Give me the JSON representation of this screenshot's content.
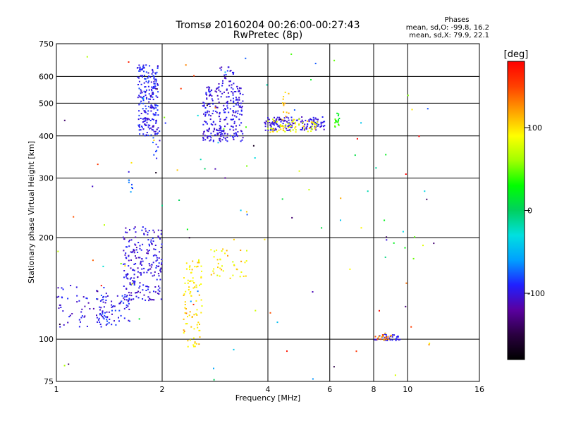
{
  "header": {
    "title_line1": "Tromsø 20160204 00:26:00-00:27:43",
    "title_line2": "RwPretec (8p)"
  },
  "stats": {
    "heading": "Phases",
    "line_o": "mean, sd,O: -99.8, 16.2",
    "line_x": "mean, sd,X:  79.9, 22.1"
  },
  "colorbar": {
    "unit": "[deg]",
    "min": -180,
    "max": 180,
    "ticks": [
      {
        "value": 100,
        "label": "100"
      },
      {
        "value": 0,
        "label": "0"
      },
      {
        "value": -100,
        "label": "-100"
      }
    ],
    "stops": [
      "#000000",
      "#2a0040",
      "#5a00a0",
      "#2020ff",
      "#00a0ff",
      "#00e0e0",
      "#00d060",
      "#00ff00",
      "#a0ff00",
      "#ffff00",
      "#ffa000",
      "#ff4000",
      "#ff0000"
    ]
  },
  "chart_data": {
    "type": "scatter",
    "title": "Tromsø 20160204 00:26:00-00:27:43",
    "subtitle": "RwPretec (8p)",
    "xlabel": "Frequency [MHz]",
    "ylabel": "Stationary phase Virtual Height [km]",
    "x_scale": "log",
    "y_scale": "log",
    "xlim": [
      1,
      16
    ],
    "ylim": [
      75,
      750
    ],
    "x_ticks": [
      {
        "value": 1,
        "label": "1"
      },
      {
        "value": 2,
        "label": "2"
      },
      {
        "value": 4,
        "label": "4"
      },
      {
        "value": 6,
        "label": "6"
      },
      {
        "value": 8,
        "label": "8"
      },
      {
        "value": 10,
        "label": "10"
      },
      {
        "value": 16,
        "label": "16"
      }
    ],
    "y_ticks": [
      {
        "value": 75,
        "label": "75"
      },
      {
        "value": 100,
        "label": "100"
      },
      {
        "value": 200,
        "label": "200"
      },
      {
        "value": 300,
        "label": "300"
      },
      {
        "value": 400,
        "label": "400"
      },
      {
        "value": 500,
        "label": "500"
      },
      {
        "value": 600,
        "label": "600"
      },
      {
        "value": 750,
        "label": "750"
      }
    ],
    "grid": true,
    "clusters": [
      {
        "fmin": 1.7,
        "fmax": 1.95,
        "hmin": 400,
        "hmax": 650,
        "phase": -95,
        "spread": 15,
        "n": 220
      },
      {
        "fmin": 1.88,
        "fmax": 1.97,
        "hmin": 340,
        "hmax": 420,
        "phase": -90,
        "spread": 20,
        "n": 12
      },
      {
        "fmin": 2.6,
        "fmax": 3.4,
        "hmin": 385,
        "hmax": 560,
        "phase": -100,
        "spread": 12,
        "n": 260
      },
      {
        "fmin": 2.9,
        "fmax": 3.3,
        "hmin": 560,
        "hmax": 640,
        "phase": -100,
        "spread": 15,
        "n": 25
      },
      {
        "fmin": 3.9,
        "fmax": 5.8,
        "hmin": 415,
        "hmax": 455,
        "phase": -100,
        "spread": 12,
        "n": 150
      },
      {
        "fmin": 3.9,
        "fmax": 5.6,
        "hmin": 410,
        "hmax": 450,
        "phase": 90,
        "spread": 25,
        "n": 70
      },
      {
        "fmin": 4.4,
        "fmax": 4.6,
        "hmin": 450,
        "hmax": 540,
        "phase": 110,
        "spread": 15,
        "n": 12
      },
      {
        "fmin": 6.2,
        "fmax": 6.4,
        "hmin": 425,
        "hmax": 470,
        "phase": 30,
        "spread": 20,
        "n": 18
      },
      {
        "fmin": 1.0,
        "fmax": 1.4,
        "hmin": 108,
        "hmax": 145,
        "phase": -100,
        "spread": 15,
        "n": 60
      },
      {
        "fmin": 1.3,
        "fmax": 1.62,
        "hmin": 110,
        "hmax": 135,
        "phase": -95,
        "spread": 18,
        "n": 70
      },
      {
        "fmin": 1.55,
        "fmax": 2.0,
        "hmin": 130,
        "hmax": 215,
        "phase": -100,
        "spread": 15,
        "n": 230
      },
      {
        "fmin": 1.6,
        "fmax": 1.65,
        "hmin": 270,
        "hmax": 315,
        "phase": -80,
        "spread": 25,
        "n": 8
      },
      {
        "fmin": 2.3,
        "fmax": 2.6,
        "hmin": 95,
        "hmax": 175,
        "phase": 100,
        "spread": 18,
        "n": 90
      },
      {
        "fmin": 2.7,
        "fmax": 3.5,
        "hmin": 150,
        "hmax": 185,
        "phase": 100,
        "spread": 25,
        "n": 40
      },
      {
        "fmin": 8.0,
        "fmax": 9.5,
        "hmin": 99,
        "hmax": 104,
        "phase": -100,
        "spread": 15,
        "n": 35
      },
      {
        "fmin": 8.0,
        "fmax": 9.0,
        "hmin": 99,
        "hmax": 103,
        "phase": 130,
        "spread": 20,
        "n": 20
      },
      {
        "fmin": 1.0,
        "fmax": 12.0,
        "hmin": 75,
        "hmax": 700,
        "phase": 0,
        "spread": 180,
        "n": 120
      }
    ]
  }
}
